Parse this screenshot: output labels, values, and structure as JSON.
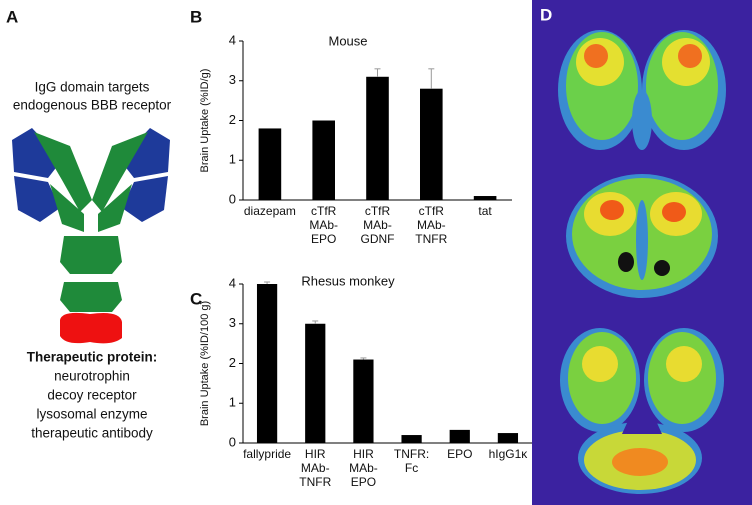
{
  "panels": {
    "a": "A",
    "b": "B",
    "c": "C",
    "d": "D"
  },
  "panel_a": {
    "targets": [
      "IgG domain targets",
      "endogenous BBB receptor"
    ],
    "protein_title": "Therapeutic protein:",
    "proteins": [
      "neurotrophin",
      "decoy receptor",
      "lysosomal enzyme",
      "therapeutic antibody"
    ]
  },
  "chart_data": [
    {
      "type": "bar",
      "title": "Mouse",
      "y_label": "Brain Uptake (%ID/g)",
      "categories": [
        [
          "diazepam"
        ],
        [
          "cTfR",
          "MAb-",
          "EPO"
        ],
        [
          "cTfR",
          "MAb-",
          "GDNF"
        ],
        [
          "cTfR",
          "MAb-",
          "TNFR"
        ],
        [
          "tat"
        ]
      ],
      "values": [
        1.8,
        2.0,
        3.1,
        2.8,
        0.1
      ],
      "errors": [
        null,
        null,
        0.2,
        0.5,
        null
      ],
      "color": "#000000",
      "ylim": [
        0,
        4
      ],
      "yticks": [
        0,
        1,
        2,
        3,
        4
      ]
    },
    {
      "type": "bar",
      "title": "Rhesus monkey",
      "y_label": "Brain Uptake (%ID/100 g)",
      "categories": [
        [
          "fallypride"
        ],
        [
          "HIR",
          "MAb-",
          "TNFR"
        ],
        [
          "HIR",
          "MAb-",
          "EPO"
        ],
        [
          "TNFR:",
          "Fc"
        ],
        [
          "EPO"
        ],
        [
          "hIgG1κ"
        ]
      ],
      "values": [
        4.0,
        3.0,
        2.1,
        0.2,
        0.33,
        0.25
      ],
      "errors": [
        0.05,
        0.07,
        0.04,
        null,
        null,
        null
      ],
      "color": "#000000",
      "ylim": [
        0,
        4
      ],
      "yticks": [
        0,
        1,
        2,
        3,
        4
      ]
    }
  ]
}
